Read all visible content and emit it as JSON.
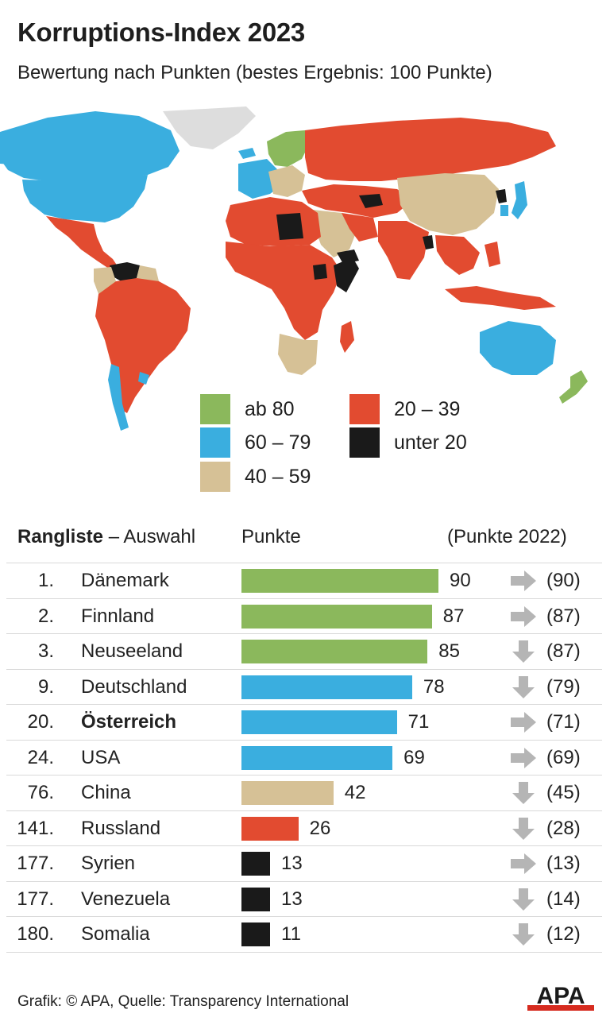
{
  "header": {
    "title": "Korruptions-Index 2023",
    "subtitle": "Bewertung nach Punkten (bestes Ergebnis: 100 Punkte)"
  },
  "legend": {
    "items": [
      {
        "label": "ab 80",
        "color": "#8bb85c"
      },
      {
        "label": "60 – 79",
        "color": "#3aaedf"
      },
      {
        "label": "40 – 59",
        "color": "#d6c196"
      },
      {
        "label": "20 – 39",
        "color": "#e24b30"
      },
      {
        "label": "unter 20",
        "color": "#1a1a1a"
      }
    ]
  },
  "map_colors": {
    "ocean": "#ffffff",
    "no_data": "#dddddd"
  },
  "ranking": {
    "header_bold": "Rangliste",
    "header_rest": "– Auswahl",
    "header_points": "Punkte",
    "header_prev": "(Punkte 2022)"
  },
  "chart_data": {
    "type": "bar",
    "title": "Rangliste – Auswahl",
    "categories": [
      "Dänemark",
      "Finnland",
      "Neuseeland",
      "Deutschland",
      "Österreich",
      "USA",
      "China",
      "Russland",
      "Syrien",
      "Venezuela",
      "Somalia"
    ],
    "ranks": [
      "1.",
      "2.",
      "3.",
      "9.",
      "20.",
      "24.",
      "76.",
      "141.",
      "177.",
      "177.",
      "180."
    ],
    "values": [
      90,
      87,
      85,
      78,
      71,
      69,
      42,
      26,
      13,
      13,
      11
    ],
    "previous": [
      "(90)",
      "(87)",
      "(87)",
      "(79)",
      "(71)",
      "(69)",
      "(45)",
      "(28)",
      "(13)",
      "(14)",
      "(12)"
    ],
    "trend": [
      "flat",
      "flat",
      "down",
      "down",
      "flat",
      "flat",
      "down",
      "down",
      "flat",
      "down",
      "down"
    ],
    "highlight": "Österreich",
    "xlim": [
      0,
      100
    ]
  },
  "footer": {
    "source": "Grafik: © APA, Quelle: Transparency International",
    "logo": "APA"
  }
}
